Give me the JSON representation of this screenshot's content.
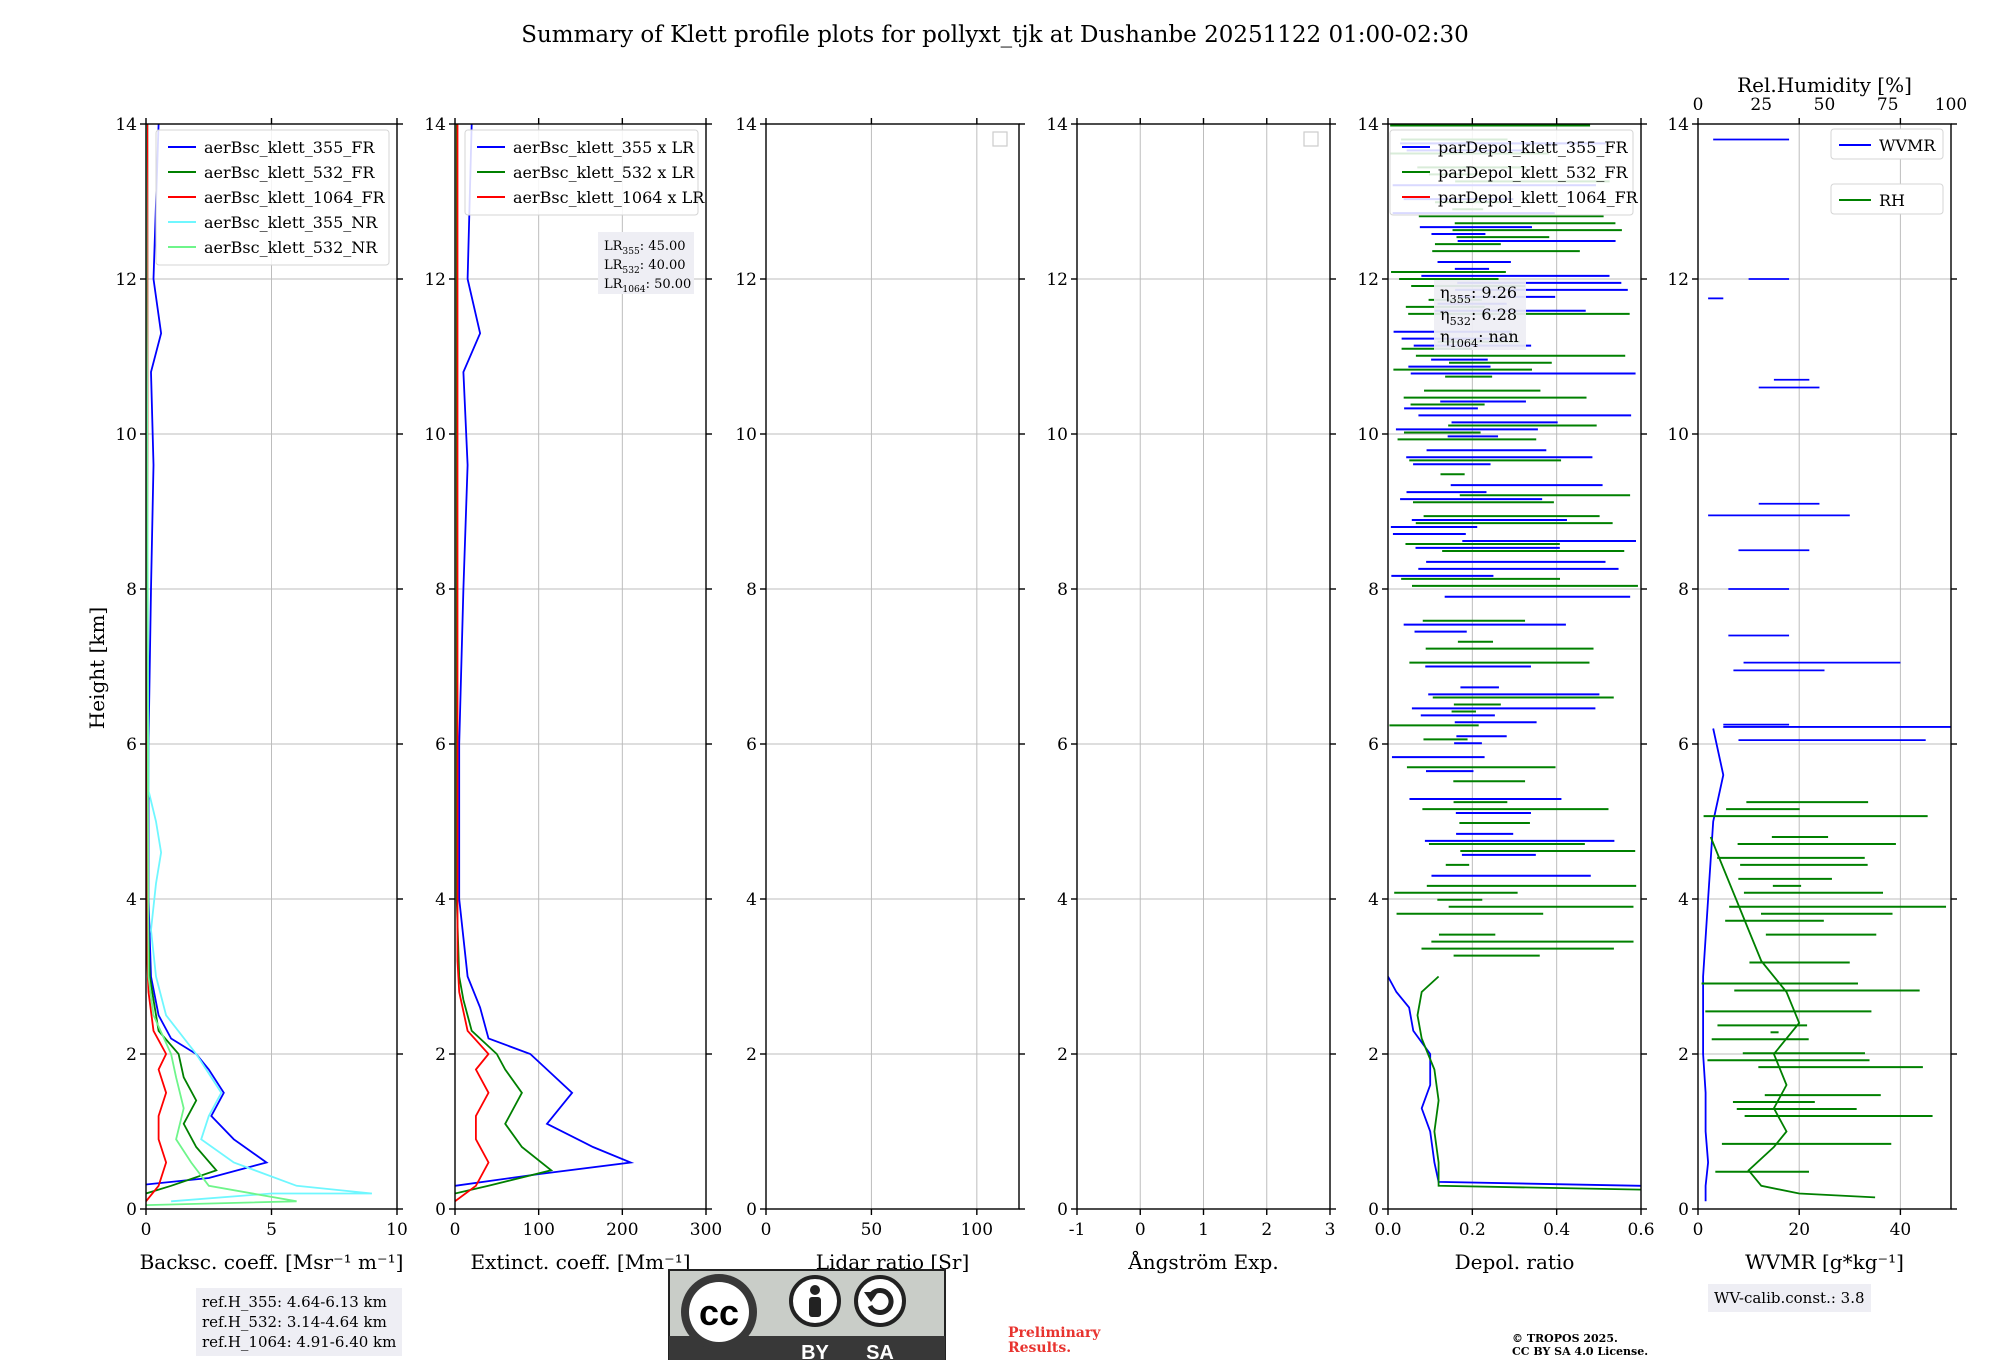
{
  "title": "Summary of Klett profile plots for pollyxt_tjk at Dushanbe 20251122 01:00-02:30",
  "y_axis_label": "Height [km]",
  "notes": {
    "ref_heights": [
      "ref.H_355: 4.64-6.13 km",
      "ref.H_532: 3.14-4.64 km",
      "ref.H_1064: 4.91-6.40 km"
    ],
    "wv_calib": "WV-calib.const.: 3.8",
    "preliminary": [
      "Preliminary",
      "Results."
    ],
    "copyright": [
      "© TROPOS 2025.",
      "CC BY SA 4.0 License."
    ],
    "cc_badge": {
      "symbol": "cc",
      "terms": [
        "BY",
        "SA"
      ]
    }
  },
  "colors": {
    "blue": "#0000ff",
    "green": "#008000",
    "red": "#ff0000",
    "cyan": "#6ff7ff",
    "lightgreen": "#6ef58a",
    "grid": "#bdbdbd"
  },
  "chart_data": [
    {
      "type": "line",
      "id": "backscatter",
      "xlabel": "Backsc. coeff. [Msr⁻¹ m⁻¹]",
      "ylabel": "Height [km]",
      "xlim": [
        0,
        10
      ],
      "ylim": [
        0,
        14
      ],
      "xticks": [
        0,
        5,
        10
      ],
      "yticks": [
        0,
        2,
        4,
        6,
        8,
        10,
        12,
        14
      ],
      "legend": {
        "position": "top-right"
      },
      "series": [
        {
          "name": "aerBsc_klett_355_FR",
          "color": "#0000ff",
          "points": [
            [
              -0.5,
              0.3
            ],
            [
              2.5,
              0.4
            ],
            [
              4.8,
              0.6
            ],
            [
              3.5,
              0.9
            ],
            [
              2.6,
              1.2
            ],
            [
              3.1,
              1.5
            ],
            [
              2.5,
              1.8
            ],
            [
              2.0,
              2.0
            ],
            [
              1.0,
              2.2
            ],
            [
              0.5,
              2.5
            ],
            [
              0.2,
              3.0
            ],
            [
              0.1,
              4.0
            ],
            [
              0.1,
              6.0
            ],
            [
              0.2,
              8.0
            ],
            [
              0.3,
              9.6
            ],
            [
              0.2,
              10.8
            ],
            [
              0.6,
              11.3
            ],
            [
              0.3,
              12.0
            ],
            [
              0.5,
              14.0
            ]
          ]
        },
        {
          "name": "aerBsc_klett_532_FR",
          "color": "#008000",
          "points": [
            [
              0.0,
              0.2
            ],
            [
              1.0,
              0.3
            ],
            [
              2.8,
              0.5
            ],
            [
              2.0,
              0.8
            ],
            [
              1.5,
              1.1
            ],
            [
              2.0,
              1.4
            ],
            [
              1.5,
              1.7
            ],
            [
              1.3,
              2.0
            ],
            [
              0.5,
              2.3
            ],
            [
              0.3,
              2.7
            ],
            [
              0.15,
              3.0
            ],
            [
              0.05,
              4.0
            ],
            [
              0.05,
              8.0
            ],
            [
              0.05,
              14.0
            ]
          ]
        },
        {
          "name": "aerBsc_klett_1064_FR",
          "color": "#ff0000",
          "points": [
            [
              0.0,
              0.1
            ],
            [
              0.5,
              0.3
            ],
            [
              0.8,
              0.6
            ],
            [
              0.5,
              0.9
            ],
            [
              0.5,
              1.2
            ],
            [
              0.8,
              1.5
            ],
            [
              0.5,
              1.8
            ],
            [
              0.8,
              2.0
            ],
            [
              0.3,
              2.3
            ],
            [
              0.1,
              2.8
            ],
            [
              0.05,
              3.2
            ],
            [
              0.05,
              6.0
            ],
            [
              0.05,
              14.0
            ]
          ]
        },
        {
          "name": "aerBsc_klett_355_NR",
          "color": "#6ff7ff",
          "points": [
            [
              1.0,
              0.1
            ],
            [
              5.0,
              0.2
            ],
            [
              9.0,
              0.2
            ],
            [
              6.0,
              0.3
            ],
            [
              3.5,
              0.6
            ],
            [
              2.2,
              0.9
            ],
            [
              2.5,
              1.2
            ],
            [
              3.0,
              1.5
            ],
            [
              2.0,
              2.0
            ],
            [
              0.8,
              2.5
            ],
            [
              0.4,
              3.0
            ],
            [
              0.2,
              3.6
            ],
            [
              0.4,
              4.2
            ],
            [
              0.6,
              4.6
            ],
            [
              0.4,
              5.0
            ],
            [
              0.1,
              5.4
            ],
            [
              0.0,
              14.0
            ]
          ]
        },
        {
          "name": "aerBsc_klett_532_NR",
          "color": "#6ef58a",
          "points": [
            [
              0.0,
              0.05
            ],
            [
              6.0,
              0.1
            ],
            [
              2.5,
              0.3
            ],
            [
              1.8,
              0.6
            ],
            [
              1.2,
              0.9
            ],
            [
              1.5,
              1.3
            ],
            [
              1.2,
              1.7
            ],
            [
              1.0,
              2.0
            ],
            [
              0.3,
              2.5
            ],
            [
              0.1,
              3.0
            ],
            [
              0.0,
              14.0
            ]
          ]
        }
      ]
    },
    {
      "type": "line",
      "id": "extinction",
      "xlabel": "Extinct. coeff. [Mm⁻¹]",
      "ylabel": "",
      "xlim": [
        0,
        300
      ],
      "ylim": [
        0,
        14
      ],
      "xticks": [
        0,
        100,
        200,
        300
      ],
      "yticks": [
        0,
        2,
        4,
        6,
        8,
        10,
        12,
        14
      ],
      "legend": {
        "position": "top-right"
      },
      "lidar_ratio_labels": [
        {
          "sym": "LR",
          "sub": "355",
          "val": ": 45.00"
        },
        {
          "sym": "LR",
          "sub": "532",
          "val": ": 40.00"
        },
        {
          "sym": "LR",
          "sub": "1064",
          "val": ": 50.00"
        }
      ],
      "series": [
        {
          "name": "aerBsc_klett_355 x LR",
          "color": "#0000ff",
          "points": [
            [
              0,
              0.3
            ],
            [
              100,
              0.45
            ],
            [
              210,
              0.6
            ],
            [
              165,
              0.8
            ],
            [
              110,
              1.1
            ],
            [
              140,
              1.5
            ],
            [
              110,
              1.8
            ],
            [
              90,
              2.0
            ],
            [
              40,
              2.2
            ],
            [
              30,
              2.6
            ],
            [
              15,
              3.0
            ],
            [
              5,
              4.0
            ],
            [
              5,
              6.0
            ],
            [
              10,
              8.0
            ],
            [
              15,
              9.6
            ],
            [
              10,
              10.8
            ],
            [
              30,
              11.3
            ],
            [
              15,
              12.0
            ],
            [
              20,
              14.0
            ]
          ]
        },
        {
          "name": "aerBsc_klett_532 x LR",
          "color": "#008000",
          "points": [
            [
              0,
              0.2
            ],
            [
              40,
              0.3
            ],
            [
              115,
              0.5
            ],
            [
              80,
              0.8
            ],
            [
              60,
              1.1
            ],
            [
              80,
              1.5
            ],
            [
              60,
              1.8
            ],
            [
              50,
              2.0
            ],
            [
              20,
              2.3
            ],
            [
              10,
              2.7
            ],
            [
              5,
              3.0
            ],
            [
              2,
              4.0
            ],
            [
              2,
              14.0
            ]
          ]
        },
        {
          "name": "aerBsc_klett_1064 x LR",
          "color": "#ff0000",
          "points": [
            [
              0,
              0.1
            ],
            [
              25,
              0.3
            ],
            [
              40,
              0.6
            ],
            [
              25,
              0.9
            ],
            [
              25,
              1.2
            ],
            [
              40,
              1.5
            ],
            [
              25,
              1.8
            ],
            [
              40,
              2.0
            ],
            [
              15,
              2.3
            ],
            [
              5,
              2.8
            ],
            [
              3,
              3.2
            ],
            [
              3,
              14.0
            ]
          ]
        }
      ]
    },
    {
      "type": "line",
      "id": "lidar_ratio",
      "xlabel": "Lidar ratio [Sr]",
      "ylabel": "",
      "xlim": [
        0,
        120
      ],
      "ylim": [
        0,
        14
      ],
      "xticks": [
        0,
        50,
        100
      ],
      "yticks": [
        0,
        2,
        4,
        6,
        8,
        10,
        12,
        14
      ],
      "legend": {
        "position": "top-right",
        "empty": true
      },
      "series": []
    },
    {
      "type": "line",
      "id": "angstrom",
      "xlabel": "Ångström Exp.",
      "ylabel": "",
      "xlim": [
        -1,
        3
      ],
      "ylim": [
        0,
        14
      ],
      "xticks": [
        -1,
        0,
        1,
        2,
        3
      ],
      "yticks": [
        0,
        2,
        4,
        6,
        8,
        10,
        12,
        14
      ],
      "legend": {
        "position": "top-right",
        "empty": true
      },
      "series": []
    },
    {
      "type": "line",
      "id": "depol",
      "xlabel": "Depol. ratio",
      "ylabel": "",
      "xlim": [
        0,
        0.6
      ],
      "ylim": [
        0,
        14
      ],
      "xticks": [
        0.0,
        0.2,
        0.4,
        0.6
      ],
      "yticks": [
        0,
        2,
        4,
        6,
        8,
        10,
        12,
        14
      ],
      "legend": {
        "position": "top-left"
      },
      "eta_labels": [
        {
          "sym": "η",
          "sub": "355",
          "val": ": 9.26"
        },
        {
          "sym": "η",
          "sub": "532",
          "val": ": 6.28"
        },
        {
          "sym": "η",
          "sub": "1064",
          "val": ": nan"
        }
      ],
      "series": [
        {
          "name": "parDepol_klett_355_FR",
          "color": "#0000ff",
          "points": [
            [
              0.6,
              0.3
            ],
            [
              0.12,
              0.35
            ],
            [
              0.11,
              0.6
            ],
            [
              0.1,
              1.0
            ],
            [
              0.08,
              1.3
            ],
            [
              0.1,
              1.6
            ],
            [
              0.1,
              2.0
            ],
            [
              0.06,
              2.3
            ],
            [
              0.05,
              2.6
            ],
            [
              0.02,
              2.8
            ],
            [
              0.0,
              3.0
            ]
          ],
          "noise_bands": [
            [
              4.3,
              14.0
            ]
          ]
        },
        {
          "name": "parDepol_klett_532_FR",
          "color": "#008000",
          "points": [
            [
              0.6,
              0.25
            ],
            [
              0.12,
              0.3
            ],
            [
              0.12,
              0.6
            ],
            [
              0.11,
              1.0
            ],
            [
              0.12,
              1.4
            ],
            [
              0.11,
              1.8
            ],
            [
              0.08,
              2.2
            ],
            [
              0.07,
              2.5
            ],
            [
              0.08,
              2.8
            ],
            [
              0.12,
              3.0
            ]
          ],
          "noise_bands": [
            [
              3.0,
              14.0
            ]
          ]
        },
        {
          "name": "parDepol_klett_1064_FR",
          "color": "#ff0000",
          "points": []
        }
      ]
    },
    {
      "type": "line",
      "id": "wvmr",
      "xlabel": "WVMR [g*kg⁻¹]",
      "ylabel": "",
      "xlim": [
        0,
        50
      ],
      "ylim": [
        0,
        14
      ],
      "xticks": [
        0,
        20,
        40
      ],
      "yticks": [
        0,
        2,
        4,
        6,
        8,
        10,
        12,
        14
      ],
      "x2label": "Rel.Humidity [%]",
      "x2lim": [
        0,
        100
      ],
      "x2ticks": [
        0,
        25,
        50,
        75,
        100
      ],
      "legend": {
        "position": "top-right"
      },
      "series": [
        {
          "name": "WVMR",
          "color": "#0000ff",
          "points": [
            [
              1.5,
              0.1
            ],
            [
              1.5,
              0.3
            ],
            [
              2.0,
              0.6
            ],
            [
              1.5,
              1.0
            ],
            [
              1.5,
              1.5
            ],
            [
              1.0,
              2.0
            ],
            [
              1.0,
              3.0
            ],
            [
              2.0,
              4.0
            ],
            [
              3.0,
              5.0
            ],
            [
              5.0,
              5.6
            ],
            [
              3.0,
              6.2
            ]
          ],
          "segments": [
            [
              5.0,
              18.0,
              6.25
            ],
            [
              5.0,
              50.0,
              6.22
            ],
            [
              8.0,
              45.0,
              6.05
            ],
            [
              9.0,
              40.0,
              7.05
            ],
            [
              7.0,
              25.0,
              6.95
            ],
            [
              6.0,
              18.0,
              7.4
            ],
            [
              6.0,
              18.0,
              8.0
            ],
            [
              8.0,
              22.0,
              8.5
            ],
            [
              2.0,
              30.0,
              8.95
            ],
            [
              12.0,
              24.0,
              9.1
            ],
            [
              12.0,
              24.0,
              10.6
            ],
            [
              15.0,
              22.0,
              10.7
            ],
            [
              10.0,
              18.0,
              12.0
            ],
            [
              2.0,
              5.0,
              11.75
            ],
            [
              3.0,
              18.0,
              13.8
            ]
          ]
        },
        {
          "name": "RH",
          "color": "#008000",
          "x_axis": "secondary",
          "points": [
            [
              70,
              0.15
            ],
            [
              40,
              0.2
            ],
            [
              25,
              0.3
            ],
            [
              20,
              0.5
            ],
            [
              30,
              0.8
            ],
            [
              35,
              1.0
            ],
            [
              30,
              1.3
            ],
            [
              35,
              1.6
            ],
            [
              30,
              2.0
            ],
            [
              40,
              2.4
            ],
            [
              35,
              2.8
            ],
            [
              25,
              3.2
            ],
            [
              20,
              3.6
            ],
            [
              15,
              4.0
            ],
            [
              10,
              4.4
            ],
            [
              5,
              4.8
            ]
          ],
          "noise_bands": [
            [
              0.3,
              5.3
            ]
          ]
        }
      ]
    }
  ]
}
